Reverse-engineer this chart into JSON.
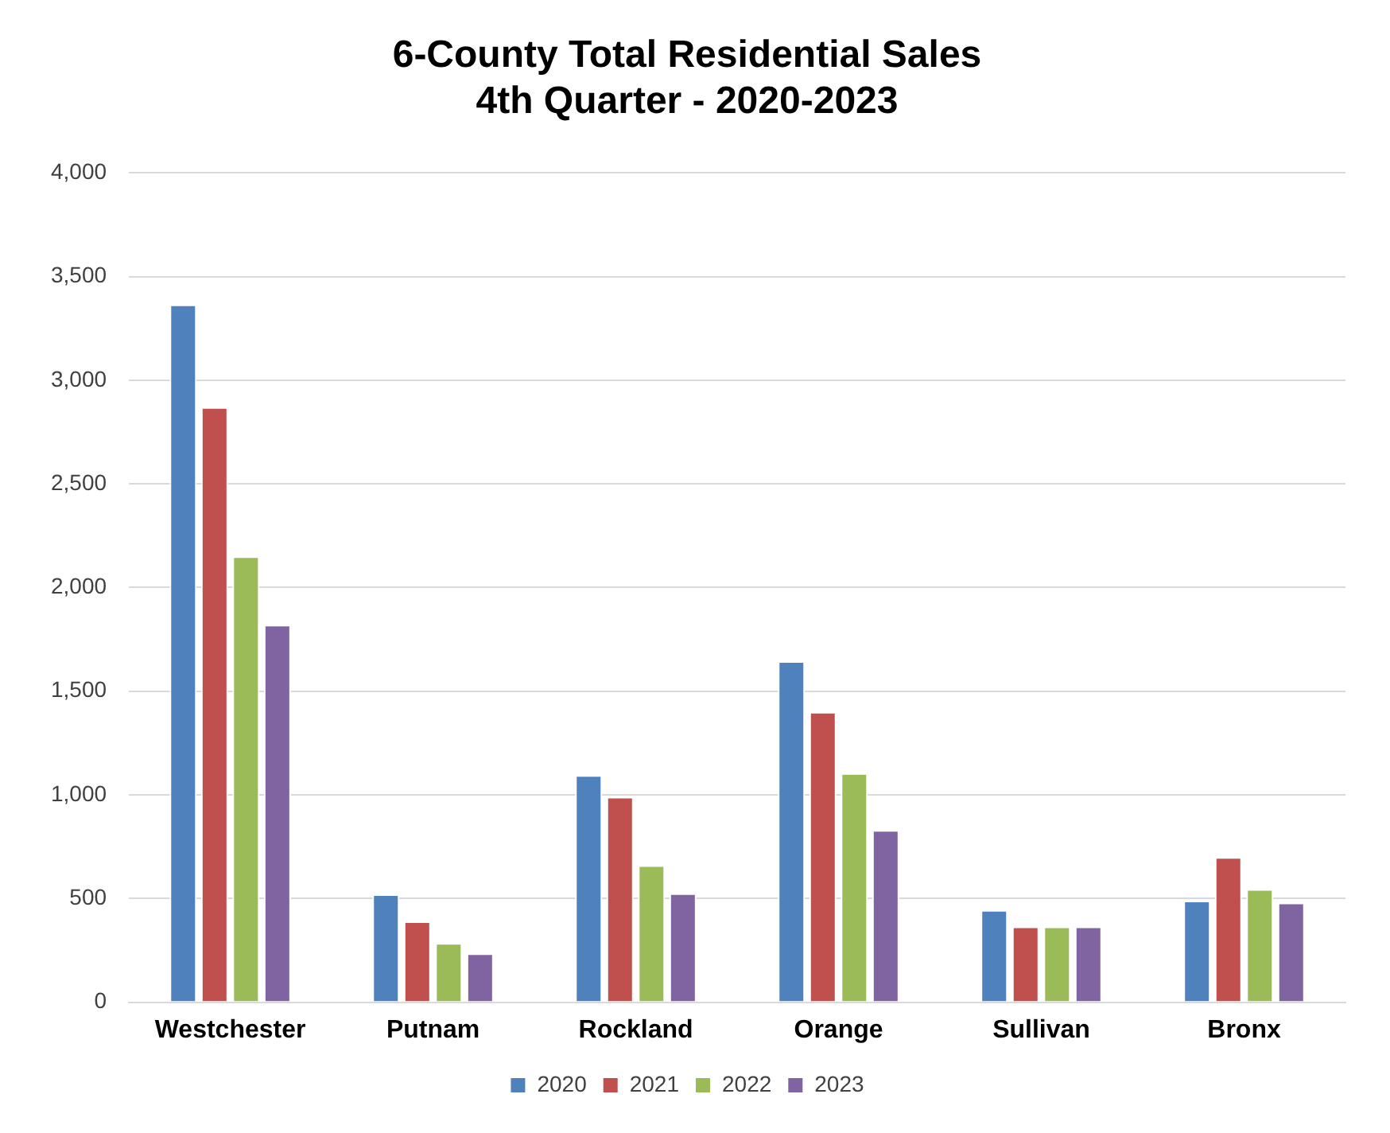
{
  "chart_data": {
    "type": "bar",
    "title": "6-County Total Residential Sales\n4th Quarter - 2020-2023",
    "categories": [
      "Westchester",
      "Putnam",
      "Rockland",
      "Orange",
      "Sullivan",
      "Bronx"
    ],
    "series": [
      {
        "name": "2020",
        "color": "#4f81bd",
        "values": [
          3365,
          520,
          1095,
          1645,
          445,
          490
        ]
      },
      {
        "name": "2021",
        "color": "#c0504d",
        "values": [
          2870,
          390,
          990,
          1400,
          365,
          700
        ]
      },
      {
        "name": "2022",
        "color": "#9bbb59",
        "values": [
          2150,
          285,
          660,
          1105,
          365,
          545
        ]
      },
      {
        "name": "2023",
        "color": "#8064a2",
        "values": [
          1820,
          235,
          525,
          830,
          365,
          480
        ]
      }
    ],
    "ylim": [
      0,
      4000
    ],
    "yticks": [
      {
        "value": 0,
        "label": "0"
      },
      {
        "value": 500,
        "label": "500"
      },
      {
        "value": 1000,
        "label": "1,000"
      },
      {
        "value": 1500,
        "label": "1,500"
      },
      {
        "value": 2000,
        "label": "2,000"
      },
      {
        "value": 2500,
        "label": "2,500"
      },
      {
        "value": 3000,
        "label": "3,000"
      },
      {
        "value": 3500,
        "label": "3,500"
      },
      {
        "value": 4000,
        "label": "4,000"
      }
    ],
    "grid": "y",
    "legend": "bottom"
  }
}
